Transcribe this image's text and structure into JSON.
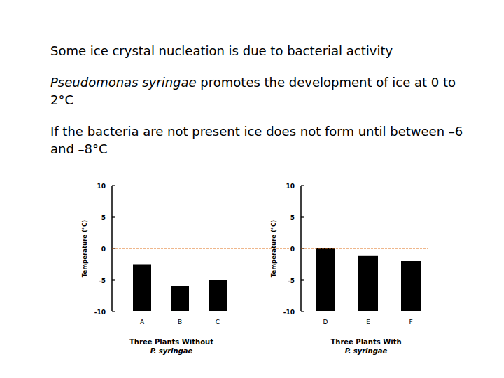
{
  "slide": {
    "paragraphs": [
      {
        "runs": [
          {
            "text": "Some ice crystal nucleation is due to bacterial activity",
            "style": "normal"
          }
        ]
      },
      {
        "runs": [
          {
            "text": "Pseudomonas syringae",
            "style": "italic"
          },
          {
            "text": " promotes the development of ice at 0 to 2°C",
            "style": "normal"
          }
        ]
      },
      {
        "runs": [
          {
            "text": "If the bacteria are not present ice does not form until between –6 and –8°C",
            "style": "normal"
          }
        ]
      }
    ]
  },
  "chart_data": [
    {
      "type": "bar",
      "title": "Three Plants Without",
      "subtitle": "P. syringae",
      "y_label": "Temperature (°C)",
      "categories": [
        "A",
        "B",
        "C"
      ],
      "values": [
        -2.5,
        -6,
        -5
      ],
      "color": "#000000",
      "ylim": [
        -10,
        10
      ],
      "yticks": [
        -10,
        -5,
        0,
        5,
        10
      ],
      "grid": false,
      "reference_line": 0
    },
    {
      "type": "bar",
      "title": "Three Plants With",
      "subtitle": "P. syringae",
      "y_label": "Temperature (°C)",
      "categories": [
        "D",
        "E",
        "F"
      ],
      "values": [
        0.1,
        -1.2,
        -2
      ],
      "color": "#000000",
      "ylim": [
        -10,
        10
      ],
      "yticks": [
        -10,
        -5,
        0,
        5,
        10
      ],
      "grid": false,
      "reference_line": 0
    }
  ]
}
